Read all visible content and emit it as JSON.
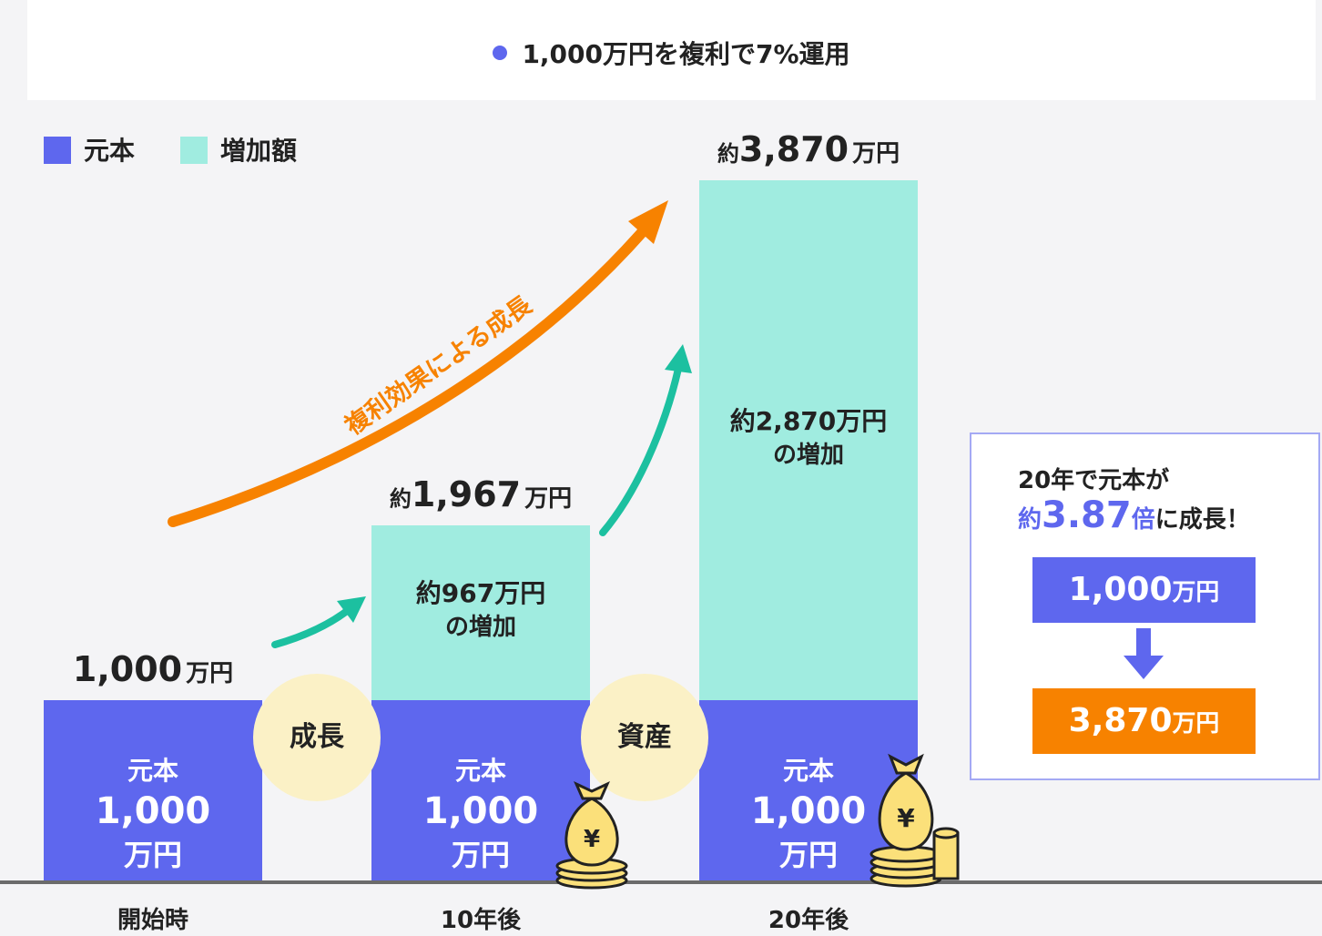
{
  "header": {
    "title": "1,000万円を複利で7%運用"
  },
  "legend": {
    "principal": "元本",
    "increase": "増加額"
  },
  "colors": {
    "principal": "#5e67ee",
    "increase": "#a0ece0",
    "arrow_orange": "#f78200",
    "arrow_teal": "#1cc0a0",
    "circle": "#fbf1c6",
    "result": "#f78200"
  },
  "chart_data": {
    "type": "bar",
    "stacked": true,
    "categories": [
      "開始時",
      "10年後",
      "20年後"
    ],
    "series": [
      {
        "name": "元本",
        "values": [
          1000,
          1000,
          1000
        ]
      },
      {
        "name": "増加額",
        "values": [
          0,
          967,
          2870
        ]
      }
    ],
    "totals": [
      {
        "prefix": "",
        "number": "1,000",
        "unit": "万円"
      },
      {
        "prefix": "約",
        "number": "1,967",
        "unit": "万円"
      },
      {
        "prefix": "約",
        "number": "3,870",
        "unit": "万円"
      }
    ],
    "principal_label": {
      "line1": "元本",
      "line2": "1,000",
      "line3": "万円"
    },
    "increase_labels": [
      null,
      {
        "line1": "約967万円",
        "line2": "の増加"
      },
      {
        "line1": "約2,870万円",
        "line2": "の増加"
      }
    ],
    "unit": "万円",
    "ylim": [
      0,
      3870
    ],
    "annotation": "複利効果による成長",
    "between_labels": [
      "成長",
      "資産"
    ]
  },
  "summary": {
    "line1": "20年で元本が",
    "line2_prefix": "約",
    "line2_value": "3.87",
    "line2_unit": "倍",
    "line2_suffix": "に成長！",
    "from_number": "1,000",
    "from_unit": "万円",
    "to_number": "3,870",
    "to_unit": "万円"
  },
  "icons": {
    "money_bag": "money-bag-icon",
    "coin_symbol": "¥"
  }
}
